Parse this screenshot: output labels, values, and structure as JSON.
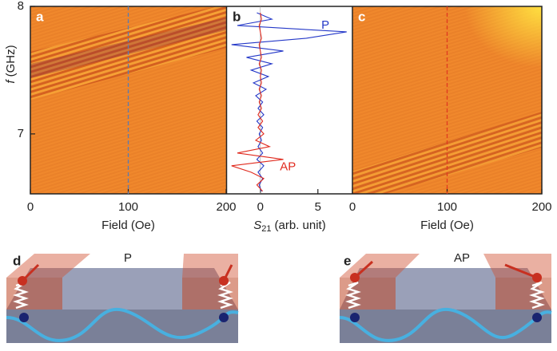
{
  "chart_data": [
    {
      "type": "heatmap",
      "panel": "a",
      "xlim": [
        0,
        200
      ],
      "xticks": [
        0,
        100,
        200
      ],
      "ylim": [
        6.53,
        8
      ],
      "yticks": [
        7,
        8
      ],
      "x_label": "Field (Oe)",
      "y_label": {
        "symbol": "f",
        "unit": "(GHz)"
      },
      "marker_x": 100,
      "marker_color": "#5d7bb0"
    },
    {
      "type": "line",
      "panel": "b",
      "xlim": [
        -2.9,
        8
      ],
      "xticks": [
        0,
        5
      ],
      "ylim": [
        6.53,
        8
      ],
      "x_label": {
        "symbol": "S",
        "subscript": "21",
        "unit": "(arb. unit)"
      },
      "y": [
        6.55,
        6.6,
        6.65,
        6.7,
        6.75,
        6.8,
        6.85,
        6.9,
        6.95,
        7.0,
        7.05,
        7.1,
        7.15,
        7.2,
        7.25,
        7.3,
        7.35,
        7.4,
        7.45,
        7.5,
        7.55,
        7.6,
        7.65,
        7.7,
        7.75,
        7.8,
        7.85,
        7.9,
        7.95
      ],
      "series": [
        {
          "name": "P",
          "color": "#2438c8",
          "values": [
            0.1,
            -0.1,
            0.2,
            -0.2,
            0.3,
            -0.3,
            0.2,
            -0.2,
            0.1,
            -0.1,
            0.2,
            -0.3,
            0.3,
            -0.2,
            0.2,
            -0.4,
            0.5,
            -0.6,
            0.7,
            -0.8,
            1.0,
            -1.2,
            2.0,
            -2.5,
            4.0,
            7.5,
            -2.0,
            1.0,
            -0.3
          ]
        },
        {
          "name": "AP",
          "color": "#e02a1e",
          "values": [
            0.2,
            -0.3,
            0.3,
            -0.8,
            -2.5,
            2.0,
            -2.0,
            0.8,
            -0.4,
            0.3,
            -0.2,
            0.2,
            -0.2,
            0.1,
            -0.1,
            0.1,
            -0.1,
            0.1,
            0,
            0.1,
            -0.1,
            0.1,
            0,
            -0.1,
            0.1,
            0,
            -0.1,
            0.1,
            0
          ]
        }
      ]
    },
    {
      "type": "heatmap",
      "panel": "c",
      "xlim": [
        0,
        200
      ],
      "xticks": [
        0,
        100,
        200
      ],
      "ylim": [
        6.53,
        8
      ],
      "x_label": "Field (Oe)",
      "marker_x": 100,
      "marker_color": "#e03a20"
    }
  ],
  "diagrams": [
    {
      "panel": "d",
      "label": "P"
    },
    {
      "panel": "e",
      "label": "AP"
    }
  ]
}
